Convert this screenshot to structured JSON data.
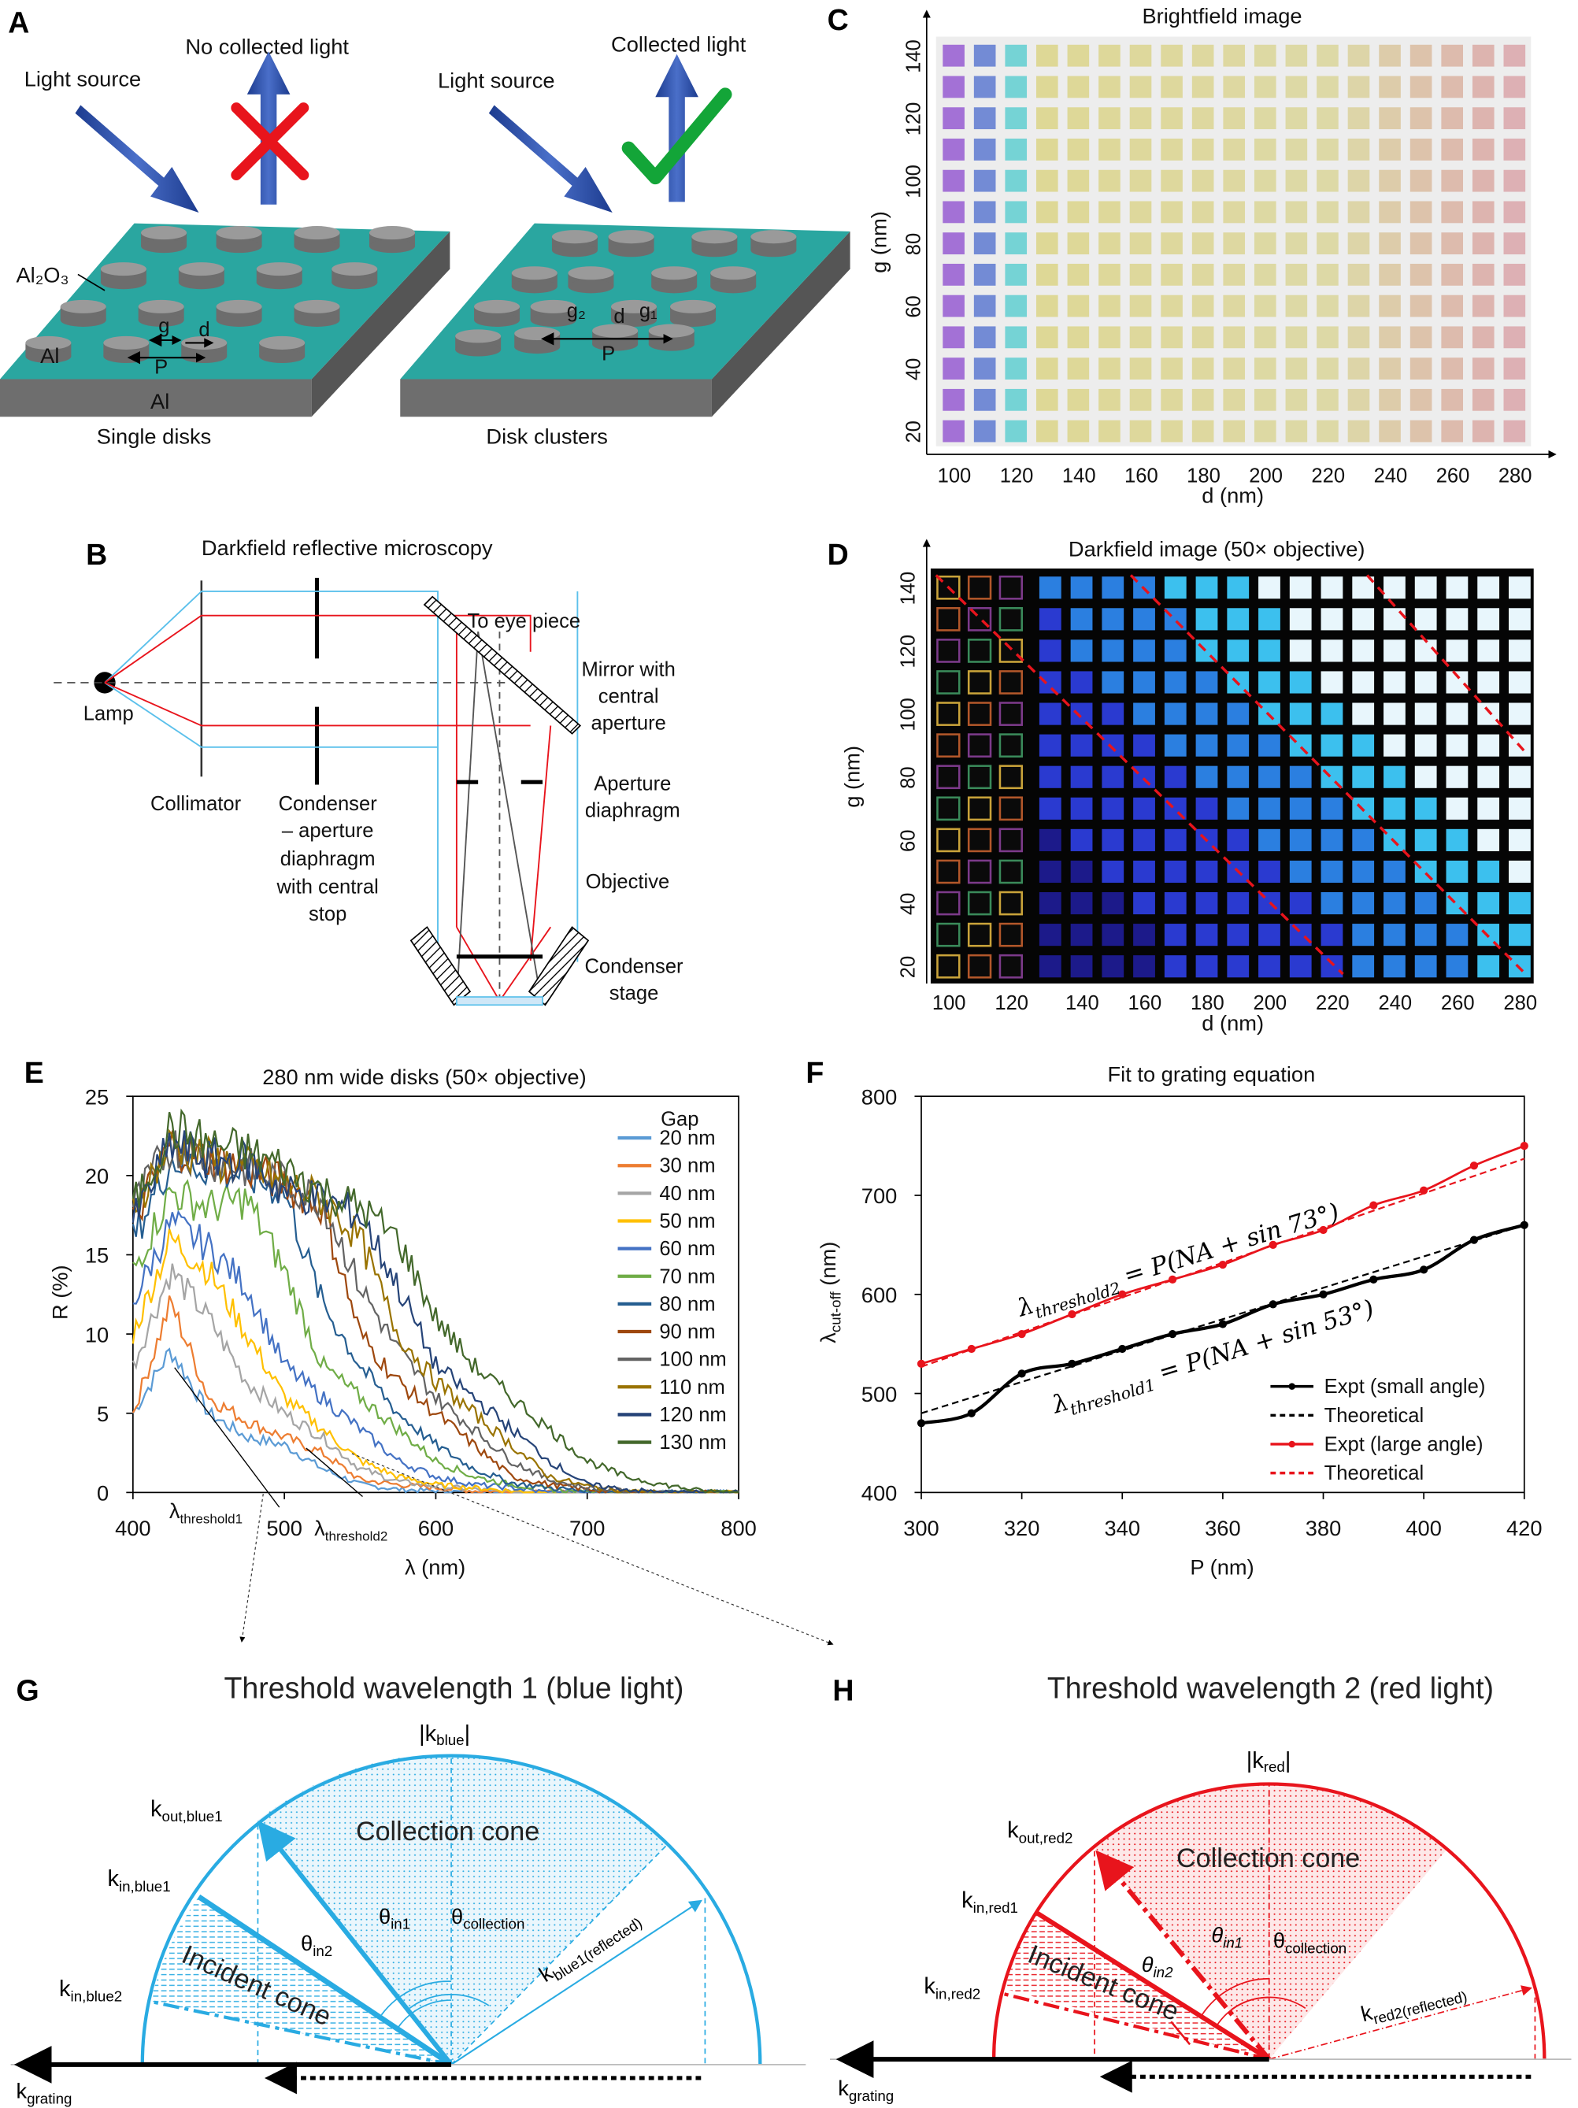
{
  "panel_labels": [
    "A",
    "B",
    "C",
    "D",
    "E",
    "F",
    "G",
    "H"
  ],
  "panel_a": {
    "light_source_left": "Light source",
    "light_source_right": "Light source",
    "no_collected_light": "No collected light",
    "collected_light": "Collected light",
    "al2o3": "Al₂O₃",
    "al_top": "Al",
    "al_side": "Al",
    "g": "g",
    "d": "d",
    "p": "P",
    "g2": "g₂",
    "d2": "d",
    "g1": "g₁",
    "p2": "P",
    "single_disks": "Single disks",
    "disk_clusters": "Disk clusters"
  },
  "panel_b": {
    "title": "Darkfield reflective microscopy",
    "lamp": "Lamp",
    "collimator": "Collimator",
    "condenser_lines": [
      "Condenser",
      "– aperture",
      "diaphragm",
      "with central",
      "stop"
    ],
    "to_eye_piece": "To eye piece",
    "mirror_lines": [
      "Mirror with",
      "central",
      "aperture"
    ],
    "aperture_lines": [
      "Aperture",
      "diaphragm"
    ],
    "objective": "Objective",
    "condenser_stage_lines": [
      "Condenser",
      "stage"
    ]
  },
  "panel_c": {
    "title": "Brightfield image",
    "xlabel": "d (nm)",
    "ylabel": "g (nm)",
    "xticks": [
      "100",
      "120",
      "140",
      "160",
      "180",
      "200",
      "220",
      "240",
      "260",
      "280"
    ],
    "yticks": [
      "20",
      "40",
      "60",
      "80",
      "100",
      "120",
      "140"
    ]
  },
  "panel_d": {
    "title": "Darkfield image (50× objective)",
    "xlabel": "d (nm)",
    "ylabel": "g (nm)",
    "xticks": [
      "100",
      "120",
      "140",
      "160",
      "180",
      "200",
      "220",
      "240",
      "260",
      "280"
    ],
    "yticks": [
      "20",
      "40",
      "60",
      "80",
      "100",
      "120",
      "140"
    ]
  },
  "chart_data": [
    {
      "id": "E",
      "type": "line",
      "title": "280 nm wide disks (50× objective)",
      "xlabel": "λ (nm)",
      "ylabel": "R (%)",
      "xlim": [
        400,
        800
      ],
      "ylim": [
        0,
        25
      ],
      "xticks": [
        "400",
        "500",
        "600",
        "700",
        "800"
      ],
      "yticks": [
        "0",
        "5",
        "10",
        "15",
        "20",
        "25"
      ],
      "legend_title": "Gap",
      "legend_position": "top-right",
      "annotations": [
        {
          "main": "λ",
          "sub": "threshold1"
        },
        {
          "main": "λ",
          "sub": "threshold2"
        }
      ],
      "x": [
        400,
        425,
        450,
        475,
        500,
        525,
        550,
        575,
        600,
        625,
        650,
        675,
        700,
        725,
        750,
        775,
        800
      ],
      "series": [
        {
          "name": "20 nm",
          "color": "#5b9bd5",
          "values": [
            5,
            9,
            5,
            3.5,
            3,
            1.5,
            0.5,
            0.2,
            0.1,
            0,
            0,
            0,
            0,
            0,
            0,
            0,
            0
          ]
        },
        {
          "name": "30 nm",
          "color": "#ed7d31",
          "values": [
            5,
            12,
            6,
            4.5,
            3.5,
            2.5,
            0.8,
            0.5,
            0.3,
            0.1,
            0,
            0,
            0,
            0,
            0,
            0,
            0
          ]
        },
        {
          "name": "40 nm",
          "color": "#a5a5a5",
          "values": [
            8,
            14,
            11,
            7,
            5,
            3.5,
            1.5,
            0.7,
            0.4,
            0.2,
            0,
            0,
            0,
            0,
            0,
            0,
            0
          ]
        },
        {
          "name": "50 nm",
          "color": "#ffc000",
          "values": [
            10,
            16,
            14,
            10,
            6,
            4,
            2,
            1,
            0.5,
            0.3,
            0.1,
            0,
            0,
            0,
            0,
            0,
            0
          ]
        },
        {
          "name": "60 nm",
          "color": "#4472c4",
          "values": [
            12,
            17,
            15.5,
            13,
            8,
            6,
            4,
            2,
            1,
            0.5,
            0.3,
            0,
            0,
            0,
            0,
            0,
            0
          ]
        },
        {
          "name": "70 nm",
          "color": "#70ad47",
          "values": [
            14,
            19,
            18,
            18.5,
            14,
            8,
            6,
            4,
            2,
            1,
            0.5,
            0.2,
            0,
            0,
            0,
            0,
            0
          ]
        },
        {
          "name": "80 nm",
          "color": "#255e91",
          "values": [
            16,
            21,
            20.5,
            20,
            19,
            12,
            8,
            5,
            3,
            1.5,
            0.6,
            0.3,
            0.1,
            0,
            0,
            0,
            0
          ]
        },
        {
          "name": "90 nm",
          "color": "#9e480e",
          "values": [
            17,
            22,
            21,
            20.5,
            19.5,
            18,
            10,
            7,
            5,
            3,
            1,
            0.5,
            0.2,
            0,
            0,
            0,
            0
          ]
        },
        {
          "name": "100 nm",
          "color": "#636363",
          "values": [
            18,
            22,
            21,
            20.5,
            19.5,
            18.5,
            13,
            9,
            6,
            4,
            2,
            0.8,
            0.3,
            0.1,
            0,
            0,
            0
          ]
        },
        {
          "name": "110 nm",
          "color": "#997300",
          "values": [
            18,
            22,
            21,
            20.5,
            19.5,
            18.5,
            16,
            10,
            7,
            5,
            3,
            1,
            0.4,
            0.1,
            0,
            0,
            0
          ]
        },
        {
          "name": "120 nm",
          "color": "#264478",
          "values": [
            17,
            22,
            21,
            21,
            19,
            18.5,
            17.5,
            13,
            8,
            6,
            4,
            2,
            0.5,
            0.2,
            0,
            0,
            0
          ]
        },
        {
          "name": "130 nm",
          "color": "#43682b",
          "values": [
            18,
            23,
            22,
            21.5,
            20.5,
            19,
            18,
            16,
            11,
            8,
            6,
            4,
            2,
            1,
            0.5,
            0.1,
            0
          ]
        }
      ]
    },
    {
      "id": "F",
      "type": "line",
      "title": "Fit to grating equation",
      "xlabel": "P (nm)",
      "ylabel": "λcut-off (nm)",
      "ylabel_main": "λ",
      "ylabel_sub": "cut-off",
      "ylabel_unit": " (nm)",
      "xlim": [
        300,
        420
      ],
      "ylim": [
        400,
        800
      ],
      "xticks": [
        "300",
        "320",
        "340",
        "360",
        "380",
        "400",
        "420"
      ],
      "yticks": [
        "400",
        "500",
        "600",
        "700",
        "800"
      ],
      "legend_position": "bottom-right",
      "equation_large": {
        "main": "λ",
        "sub": "threshold2",
        "rest": " = P(NA + sin 73°)"
      },
      "equation_small": {
        "main": "λ",
        "sub": "threshold1",
        "rest": " = P(NA + sin 53°)"
      },
      "x": [
        300,
        310,
        320,
        330,
        340,
        350,
        360,
        370,
        380,
        390,
        400,
        410,
        420
      ],
      "series": [
        {
          "name": "Expt (small angle)",
          "color": "#000000",
          "style": "solid-marker",
          "values": [
            470,
            480,
            520,
            530,
            545,
            560,
            570,
            590,
            600,
            615,
            625,
            655,
            670
          ]
        },
        {
          "name": "Theoretical",
          "color": "#000000",
          "style": "dashed",
          "values": [
            480,
            496,
            511,
            527,
            543,
            559,
            575,
            590,
            606,
            622,
            638,
            654,
            670
          ]
        },
        {
          "name": "Expt (large angle)",
          "color": "#e8141c",
          "style": "solid-marker",
          "values": [
            530,
            545,
            560,
            580,
            600,
            615,
            630,
            650,
            665,
            690,
            705,
            730,
            750
          ]
        },
        {
          "name": "Theoretical",
          "color": "#e8141c",
          "style": "dashed",
          "values": [
            527,
            545,
            562,
            580,
            597,
            615,
            632,
            650,
            667,
            685,
            702,
            720,
            737
          ]
        }
      ]
    }
  ],
  "panel_g": {
    "title": "Threshold wavelength 1 (blue light)",
    "color": "#29abe2",
    "k_blue": {
      "main": "|k",
      "sub": "blue",
      "end": "|"
    },
    "k_out": {
      "main": "k",
      "sub": "out,blue1"
    },
    "k_in1": {
      "main": "k",
      "sub": "in,blue1"
    },
    "k_in2": {
      "main": "k",
      "sub": "in,blue2"
    },
    "collection_cone": "Collection cone",
    "incident_cone": "Incident cone",
    "theta_in1": {
      "main": "θ",
      "sub": "in1"
    },
    "theta_in2": {
      "main": "θ",
      "sub": "in2"
    },
    "theta_collection": {
      "main": "θ",
      "sub": "collection"
    },
    "k_reflected": {
      "main": "k",
      "sub": "blue1(reflected)"
    },
    "k_grating": {
      "main": "k",
      "sub": "grating"
    }
  },
  "panel_h": {
    "title": "Threshold wavelength 2 (red light)",
    "color": "#e8141c",
    "k_red": {
      "main": "|k",
      "sub": "red",
      "end": "|"
    },
    "k_out": {
      "main": "k",
      "sub": "out,red2"
    },
    "k_in1": {
      "main": "k",
      "sub": "in,red1"
    },
    "k_in2": {
      "main": "k",
      "sub": "in,red2"
    },
    "collection_cone": "Collection cone",
    "incident_cone": "Incident cone",
    "theta_in1": {
      "main": "θ",
      "sub": "in1"
    },
    "theta_in2": {
      "main": "θ",
      "sub": "in2"
    },
    "theta_collection": {
      "main": "θ",
      "sub": "collection"
    },
    "k_reflected": {
      "main": "k",
      "sub": "red2(reflected)"
    },
    "k_grating": {
      "main": "k",
      "sub": "grating"
    }
  }
}
